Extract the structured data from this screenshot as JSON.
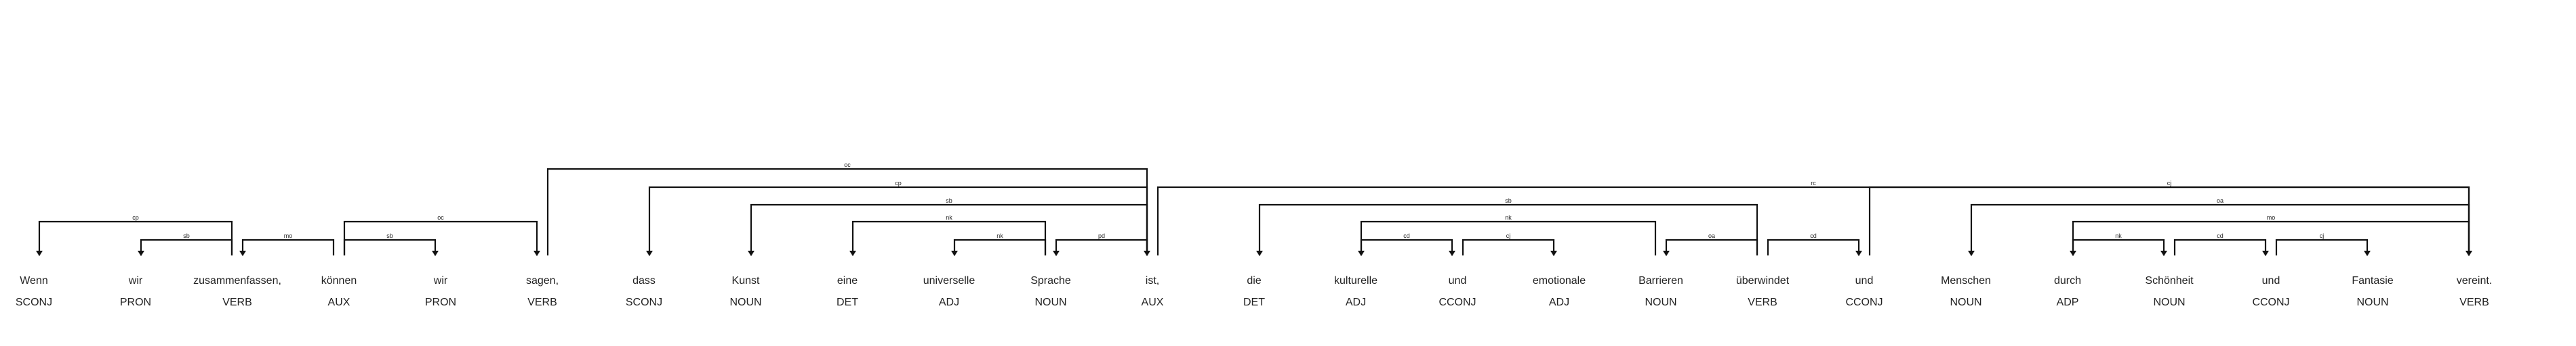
{
  "tokens": [
    {
      "text": "Wenn",
      "tag": "SCONJ"
    },
    {
      "text": "wir",
      "tag": "PRON"
    },
    {
      "text": "zusammenfassen,",
      "tag": "VERB"
    },
    {
      "text": "können",
      "tag": "AUX"
    },
    {
      "text": "wir",
      "tag": "PRON"
    },
    {
      "text": "sagen,",
      "tag": "VERB"
    },
    {
      "text": "dass",
      "tag": "SCONJ"
    },
    {
      "text": "Kunst",
      "tag": "NOUN"
    },
    {
      "text": "eine",
      "tag": "DET"
    },
    {
      "text": "universelle",
      "tag": "ADJ"
    },
    {
      "text": "Sprache",
      "tag": "NOUN"
    },
    {
      "text": "ist,",
      "tag": "AUX"
    },
    {
      "text": "die",
      "tag": "DET"
    },
    {
      "text": "kulturelle",
      "tag": "ADJ"
    },
    {
      "text": "und",
      "tag": "CCONJ"
    },
    {
      "text": "emotionale",
      "tag": "ADJ"
    },
    {
      "text": "Barrieren",
      "tag": "NOUN"
    },
    {
      "text": "überwindet",
      "tag": "VERB"
    },
    {
      "text": "und",
      "tag": "CCONJ"
    },
    {
      "text": "Menschen",
      "tag": "NOUN"
    },
    {
      "text": "durch",
      "tag": "ADP"
    },
    {
      "text": "Schönheit",
      "tag": "NOUN"
    },
    {
      "text": "und",
      "tag": "CCONJ"
    },
    {
      "text": "Fantasie",
      "tag": "NOUN"
    },
    {
      "text": "vereint.",
      "tag": "VERB"
    }
  ],
  "arcs": [
    {
      "from": 0,
      "to": 2,
      "dir": "left",
      "label": "cp",
      "level": 1
    },
    {
      "from": 1,
      "to": 2,
      "dir": "left",
      "label": "sb",
      "level": 0
    },
    {
      "from": 2,
      "to": 3,
      "dir": "left",
      "label": "mo",
      "level": 0
    },
    {
      "from": 3,
      "to": 4,
      "dir": "right",
      "label": "sb",
      "level": 0
    },
    {
      "from": 3,
      "to": 5,
      "dir": "right",
      "label": "oc",
      "level": 1
    },
    {
      "from": 5,
      "to": 11,
      "dir": "right",
      "label": "oc",
      "level": 4
    },
    {
      "from": 6,
      "to": 11,
      "dir": "left",
      "label": "cp",
      "level": 3
    },
    {
      "from": 7,
      "to": 11,
      "dir": "left",
      "label": "sb",
      "level": 2
    },
    {
      "from": 8,
      "to": 10,
      "dir": "left",
      "label": "nk",
      "level": 1
    },
    {
      "from": 9,
      "to": 10,
      "dir": "left",
      "label": "nk",
      "level": 0
    },
    {
      "from": 10,
      "to": 11,
      "dir": "left",
      "label": "pd",
      "level": 0
    },
    {
      "from": 11,
      "to": 24,
      "dir": "right",
      "label": "rc",
      "level": 3
    },
    {
      "from": 12,
      "to": 17,
      "dir": "left",
      "label": "sb",
      "level": 2
    },
    {
      "from": 13,
      "to": 16,
      "dir": "left",
      "label": "nk",
      "level": 1
    },
    {
      "from": 13,
      "to": 14,
      "dir": "right",
      "label": "cd",
      "level": 0
    },
    {
      "from": 14,
      "to": 15,
      "dir": "right",
      "label": "cj",
      "level": 0
    },
    {
      "from": 16,
      "to": 17,
      "dir": "left",
      "label": "oa",
      "level": 0
    },
    {
      "from": 17,
      "to": 18,
      "dir": "right",
      "label": "cd",
      "level": 0
    },
    {
      "from": 18,
      "to": 24,
      "dir": "right",
      "label": "cj",
      "level": 3
    },
    {
      "from": 19,
      "to": 24,
      "dir": "left",
      "label": "oa",
      "level": 2
    },
    {
      "from": 20,
      "to": 24,
      "dir": "left",
      "label": "mo",
      "level": 1
    },
    {
      "from": 20,
      "to": 21,
      "dir": "right",
      "label": "nk",
      "level": 0
    },
    {
      "from": 21,
      "to": 22,
      "dir": "right",
      "label": "cd",
      "level": 0
    },
    {
      "from": 22,
      "to": 23,
      "dir": "right",
      "label": "cj",
      "level": 0
    }
  ]
}
